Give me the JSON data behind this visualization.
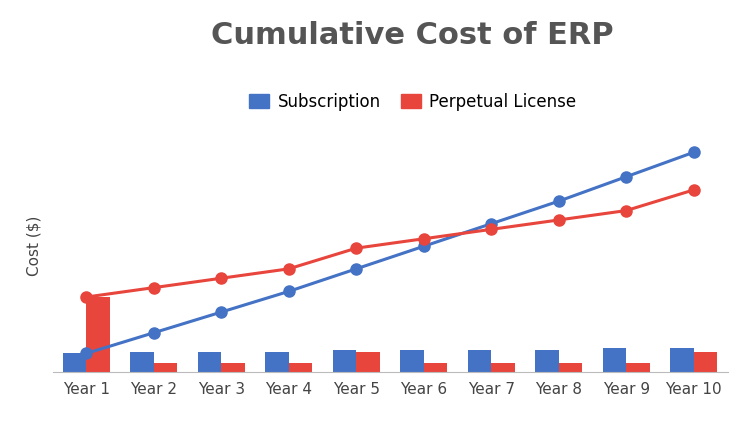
{
  "title": "Cumulative Cost of ERP",
  "ylabel": "Cost ($)",
  "years": [
    "Year 1",
    "Year 2",
    "Year 3",
    "Year 4",
    "Year 5",
    "Year 6",
    "Year 7",
    "Year 8",
    "Year 9",
    "Year 10"
  ],
  "subscription_annual": [
    10,
    11,
    11,
    11,
    12,
    12,
    12,
    12,
    13,
    13
  ],
  "perpetual_annual": [
    40,
    5,
    5,
    5,
    11,
    5,
    5,
    5,
    5,
    11
  ],
  "subscription_cumulative": [
    10,
    21,
    32,
    43,
    55,
    67,
    79,
    91,
    104,
    117
  ],
  "perpetual_cumulative": [
    40,
    45,
    50,
    55,
    66,
    71,
    76,
    81,
    86,
    97
  ],
  "bar_color_subscription": "#4472C4",
  "bar_color_perpetual": "#E8453C",
  "line_color_subscription": "#4472C4",
  "line_color_perpetual": "#E8453C",
  "background_color": "#FFFFFF",
  "grid_color": "#DDDDDD",
  "title_fontsize": 22,
  "label_fontsize": 11,
  "legend_fontsize": 12,
  "tick_fontsize": 11,
  "bar_width": 0.35,
  "ylim_max": 135
}
